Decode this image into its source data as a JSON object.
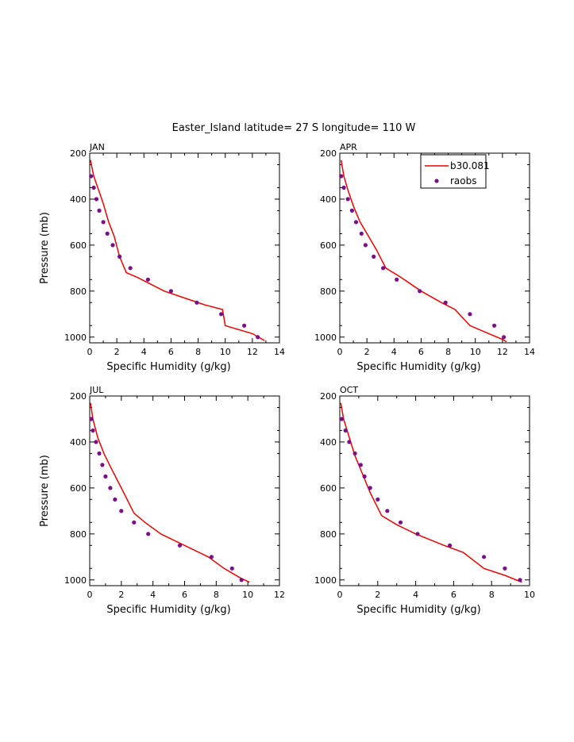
{
  "figure_title": "Easter_Island  latitude= 27 S longitude= 110 W",
  "legend": {
    "model_label": "b30.081",
    "obs_label": "raobs"
  },
  "colors": {
    "model": "#ee0000",
    "obs": "#7a0f86",
    "axis": "#000000"
  },
  "chart_data": [
    {
      "type": "line",
      "panel": "JAN",
      "xlabel": "Specific Humidity (g/kg)",
      "ylabel": "Pressure (mb)",
      "xlim": [
        0,
        14
      ],
      "ylim": [
        200,
        1025
      ],
      "xticks": [
        0,
        2,
        4,
        6,
        8,
        10,
        12,
        14
      ],
      "yticks": [
        200,
        400,
        600,
        800,
        1000
      ],
      "series": [
        {
          "name": "b30.081",
          "kind": "line",
          "x": [
            0.05,
            0.3,
            0.6,
            1.0,
            1.4,
            1.8,
            2.2,
            2.7,
            3.5,
            4.5,
            5.5,
            7.0,
            8.5,
            9.8,
            10.0,
            12.0,
            12.9
          ],
          "y": [
            230,
            300,
            350,
            420,
            500,
            560,
            650,
            720,
            740,
            770,
            800,
            830,
            860,
            880,
            950,
            985,
            1015
          ]
        },
        {
          "name": "raobs",
          "kind": "scatter",
          "x": [
            0.1,
            0.3,
            0.5,
            0.7,
            1.0,
            1.3,
            1.7,
            2.2,
            3.0,
            4.3,
            6.0,
            7.9,
            9.7,
            11.4,
            12.4
          ],
          "y": [
            300,
            350,
            400,
            450,
            500,
            550,
            600,
            650,
            700,
            750,
            800,
            850,
            900,
            950,
            1000
          ]
        }
      ]
    },
    {
      "type": "line",
      "panel": "APR",
      "xlabel": "Specific Humidity (g/kg)",
      "ylabel": "Pressure (mb)",
      "xlim": [
        0,
        14
      ],
      "ylim": [
        200,
        1025
      ],
      "xticks": [
        0,
        2,
        4,
        6,
        8,
        10,
        12,
        14
      ],
      "yticks": [
        200,
        400,
        600,
        800,
        1000
      ],
      "series": [
        {
          "name": "b30.081",
          "kind": "line",
          "x": [
            0.1,
            0.3,
            0.6,
            1.0,
            1.5,
            2.1,
            2.7,
            3.4,
            4.5,
            6.0,
            7.5,
            8.5,
            9.6,
            11.2,
            12.0,
            12.3
          ],
          "y": [
            230,
            300,
            360,
            430,
            500,
            560,
            620,
            700,
            740,
            800,
            850,
            880,
            950,
            990,
            1010,
            1020
          ]
        },
        {
          "name": "raobs",
          "kind": "scatter",
          "x": [
            0.1,
            0.3,
            0.6,
            0.9,
            1.2,
            1.6,
            1.9,
            2.5,
            3.2,
            4.2,
            5.9,
            7.8,
            9.6,
            11.4,
            12.1
          ],
          "y": [
            300,
            350,
            400,
            450,
            500,
            550,
            600,
            650,
            700,
            750,
            800,
            850,
            900,
            950,
            1000
          ]
        }
      ]
    },
    {
      "type": "line",
      "panel": "JUL",
      "xlabel": "Specific Humidity (g/kg)",
      "ylabel": "Pressure (mb)",
      "xlim": [
        0,
        12
      ],
      "ylim": [
        200,
        1025
      ],
      "xticks": [
        0,
        2,
        4,
        6,
        8,
        10,
        12
      ],
      "yticks": [
        200,
        400,
        600,
        800,
        1000
      ],
      "series": [
        {
          "name": "b30.081",
          "kind": "line",
          "x": [
            0.05,
            0.2,
            0.5,
            0.9,
            1.4,
            2.0,
            2.8,
            3.5,
            4.5,
            6.0,
            7.5,
            8.5,
            9.5,
            10.1
          ],
          "y": [
            230,
            300,
            380,
            450,
            520,
            600,
            710,
            750,
            800,
            850,
            900,
            950,
            990,
            1010
          ]
        },
        {
          "name": "raobs",
          "kind": "scatter",
          "x": [
            0.1,
            0.2,
            0.4,
            0.6,
            0.8,
            1.0,
            1.3,
            1.6,
            2.0,
            2.8,
            3.7,
            5.7,
            7.7,
            9.0,
            9.6
          ],
          "y": [
            300,
            350,
            400,
            450,
            500,
            550,
            600,
            650,
            700,
            750,
            800,
            850,
            900,
            950,
            1000
          ]
        }
      ]
    },
    {
      "type": "line",
      "panel": "OCT",
      "xlabel": "Specific Humidity (g/kg)",
      "ylabel": "Pressure (mb)",
      "xlim": [
        0,
        10
      ],
      "ylim": [
        200,
        1025
      ],
      "xticks": [
        0,
        2,
        4,
        6,
        8,
        10
      ],
      "yticks": [
        200,
        400,
        600,
        800,
        1000
      ],
      "series": [
        {
          "name": "b30.081",
          "kind": "line",
          "x": [
            0.05,
            0.2,
            0.5,
            0.8,
            1.2,
            1.6,
            2.2,
            3.0,
            4.0,
            5.5,
            6.5,
            7.6,
            8.7,
            9.6
          ],
          "y": [
            230,
            300,
            380,
            460,
            540,
            620,
            720,
            760,
            800,
            850,
            880,
            950,
            980,
            1010
          ]
        },
        {
          "name": "raobs",
          "kind": "scatter",
          "x": [
            0.1,
            0.3,
            0.5,
            0.8,
            1.1,
            1.3,
            1.6,
            2.0,
            2.5,
            3.2,
            4.1,
            5.8,
            7.6,
            8.7,
            9.5
          ],
          "y": [
            300,
            350,
            400,
            450,
            500,
            550,
            600,
            650,
            700,
            750,
            800,
            850,
            900,
            950,
            1000
          ]
        }
      ]
    }
  ]
}
